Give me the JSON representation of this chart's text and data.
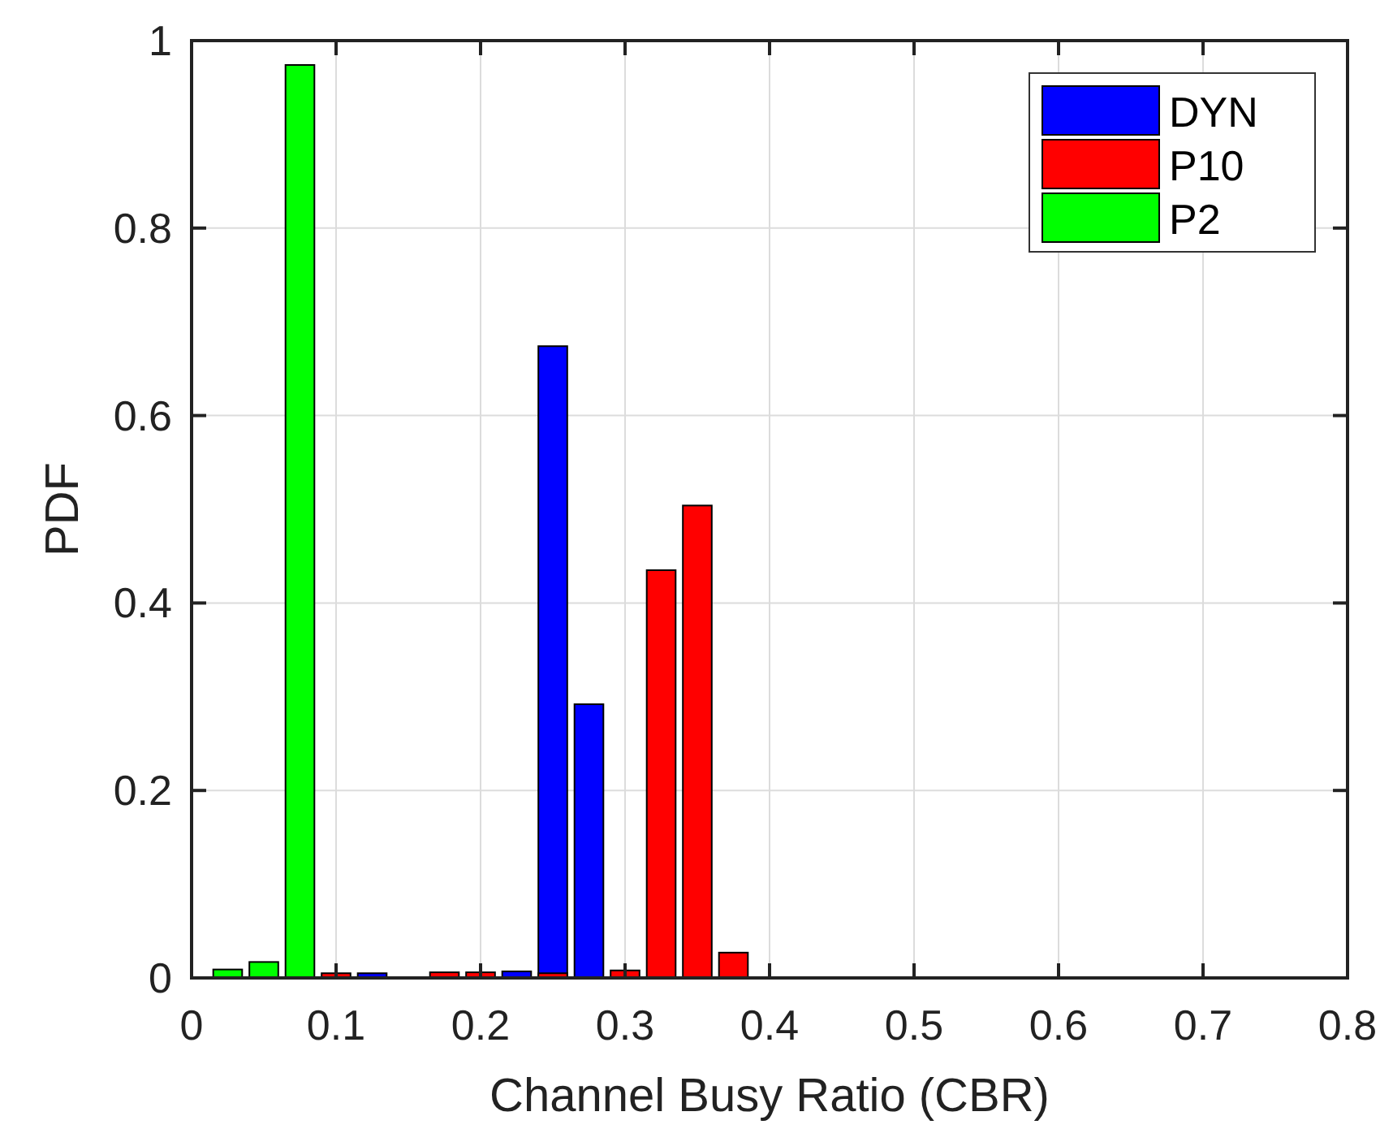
{
  "chart_data": {
    "type": "bar",
    "xlabel": "Channel Busy Ratio (CBR)",
    "ylabel": "PDF",
    "xlim": [
      0,
      0.8
    ],
    "ylim": [
      0,
      1
    ],
    "xticks": [
      0,
      0.1,
      0.2,
      0.3,
      0.4,
      0.5,
      0.6,
      0.7,
      0.8
    ],
    "yticks": [
      0,
      0.2,
      0.4,
      0.6,
      0.8,
      1
    ],
    "grid": true,
    "legend": "top right",
    "series": [
      {
        "name": "DYN",
        "color": "#0000ff",
        "x": [
          0.125,
          0.225,
          0.25,
          0.275
        ],
        "values": [
          0.005,
          0.007,
          0.674,
          0.292
        ]
      },
      {
        "name": "P10",
        "color": "#ff0000",
        "x": [
          0.1,
          0.175,
          0.2,
          0.25,
          0.3,
          0.325,
          0.35,
          0.375
        ],
        "values": [
          0.005,
          0.006,
          0.006,
          0.005,
          0.008,
          0.435,
          0.504,
          0.027
        ]
      },
      {
        "name": "P2",
        "color": "#00ff00",
        "x": [
          0.025,
          0.05,
          0.075
        ],
        "values": [
          0.009,
          0.017,
          0.974
        ]
      }
    ]
  }
}
